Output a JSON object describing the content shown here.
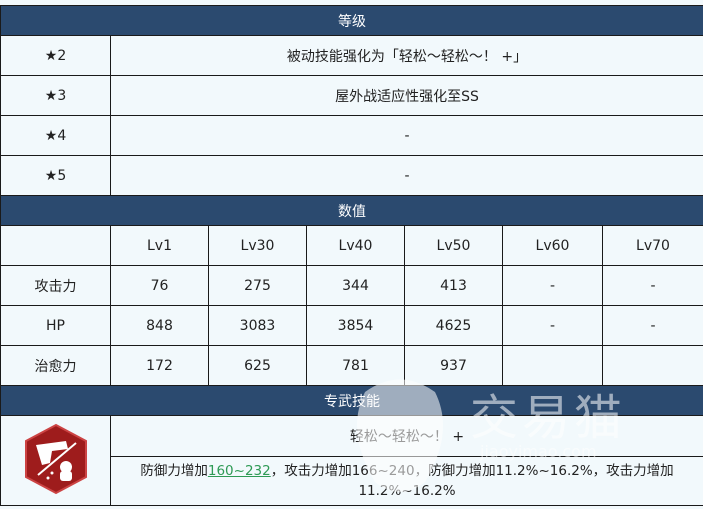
{
  "level": {
    "header": "等级",
    "rows": [
      {
        "star": "★2",
        "text": "被动技能强化为「轻松～轻松～！ +」"
      },
      {
        "star": "★3",
        "text": "屋外战适应性强化至SS"
      },
      {
        "star": "★4",
        "text": "-"
      },
      {
        "star": "★5",
        "text": "-"
      }
    ]
  },
  "stats": {
    "header": "数值",
    "columns": [
      "Lv1",
      "Lv30",
      "Lv40",
      "Lv50",
      "Lv60",
      "Lv70"
    ],
    "rows": [
      {
        "label": "攻击力",
        "values": [
          "76",
          "275",
          "344",
          "413",
          "-",
          "-"
        ]
      },
      {
        "label": "HP",
        "values": [
          "848",
          "3083",
          "3854",
          "4625",
          "-",
          "-"
        ]
      },
      {
        "label": "治愈力",
        "values": [
          "172",
          "625",
          "781",
          "937",
          "",
          ""
        ]
      }
    ]
  },
  "weapon": {
    "header": "专武技能",
    "name": "轻松～轻松～！ +",
    "desc_pre": "防御力增加",
    "desc_link": "160~232",
    "desc_post": "，攻击力增加166~240，防御力增加11.2%~16.2%，攻击力增加11.2%~16.2%",
    "icon": "pistol-weapon-icon",
    "icon_color": "#9e1c1c"
  },
  "watermark": {
    "text": "交易猫",
    "url": "jiaoyimao.com"
  },
  "colors": {
    "header": "#2b4a6f",
    "cell": "#f2f9fc",
    "link": "#2e9a55"
  }
}
